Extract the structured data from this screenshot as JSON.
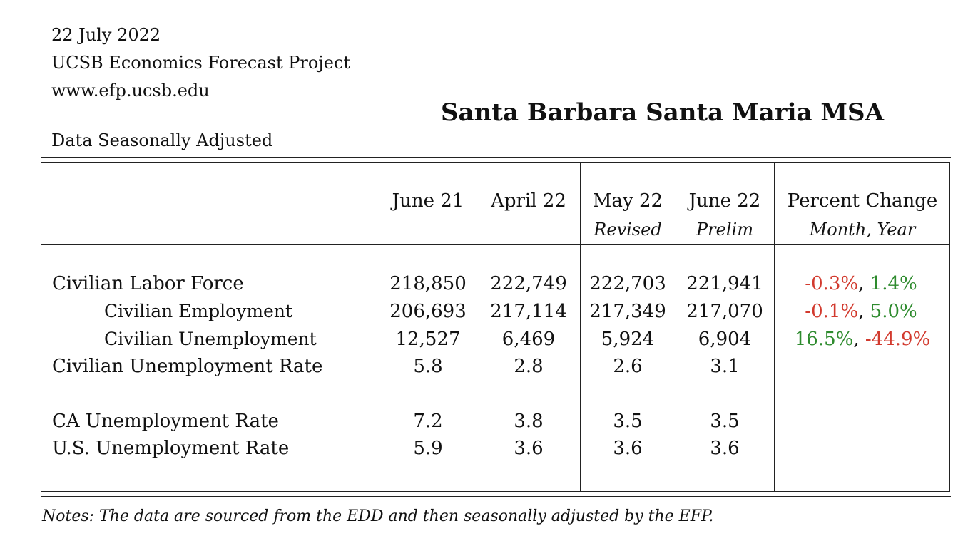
{
  "header": {
    "date": "22 July 2022",
    "organization": "UCSB Economics Forecast Project",
    "website": "www.efp.ucsb.edu"
  },
  "title": "Santa Barbara Santa Maria MSA",
  "subtitle": "Data Seasonally Adjusted",
  "table": {
    "columns": [
      {
        "label": "June 21",
        "sub": ""
      },
      {
        "label": "April 22",
        "sub": ""
      },
      {
        "label": "May 22",
        "sub": "Revised"
      },
      {
        "label": "June 22",
        "sub": "Prelim"
      },
      {
        "label": "Percent Change",
        "sub": "Month, Year"
      }
    ],
    "rows": [
      {
        "label": "Civilian Labor Force",
        "values": [
          "218,850",
          "222,749",
          "222,703",
          "221,941"
        ],
        "month_change": "-0.3%",
        "year_change": "1.4%"
      },
      {
        "label": "Civilian Employment",
        "values": [
          "206,693",
          "217,114",
          "217,349",
          "217,070"
        ],
        "month_change": "-0.1%",
        "year_change": "5.0%"
      },
      {
        "label": "Civilian Unemployment",
        "values": [
          "12,527",
          "6,469",
          "5,924",
          "6,904"
        ],
        "month_change": "16.5%",
        "year_change": "-44.9%"
      },
      {
        "label": "Civilian Unemployment Rate",
        "values": [
          "5.8",
          "2.8",
          "2.6",
          "3.1"
        ]
      },
      {
        "label": "CA Unemployment Rate",
        "values": [
          "7.2",
          "3.8",
          "3.5",
          "3.5"
        ]
      },
      {
        "label": "U.S. Unemployment Rate",
        "values": [
          "5.9",
          "3.6",
          "3.6",
          "3.6"
        ]
      }
    ],
    "change_separator": ", "
  },
  "colors": {
    "negative": "#d23a2e",
    "positive": "#2e8b2e"
  },
  "notes": "Notes: The data are sourced from the EDD and then seasonally adjusted by the EFP."
}
